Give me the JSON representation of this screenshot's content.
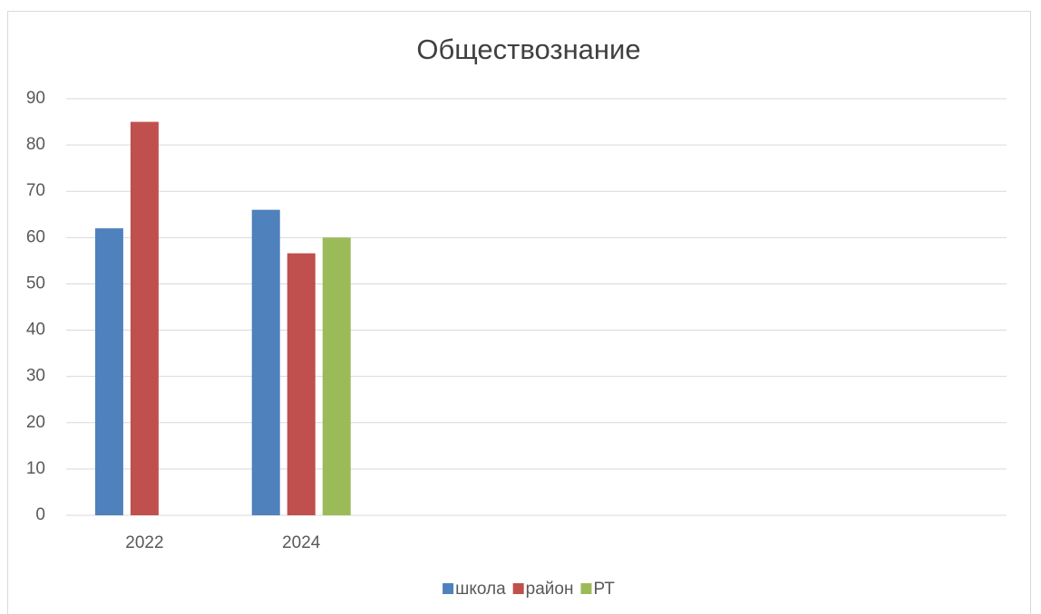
{
  "chart_data": {
    "type": "bar",
    "title": "Обществознание",
    "categories": [
      "2022",
      "2024",
      null,
      null,
      null,
      null
    ],
    "series": [
      {
        "name": "школа",
        "color": "#4f81bd",
        "values": [
          62,
          66,
          null,
          null,
          null,
          null
        ]
      },
      {
        "name": "район",
        "color": "#c0504d",
        "values": [
          85,
          56.6,
          null,
          null,
          null,
          null
        ]
      },
      {
        "name": "РТ",
        "color": "#9bbb59",
        "values": [
          null,
          60,
          null,
          null,
          null,
          null
        ]
      }
    ],
    "ylim": [
      0,
      90
    ],
    "yticks": [
      0,
      10,
      20,
      30,
      40,
      50,
      60,
      70,
      80,
      90
    ],
    "grid": true,
    "legend": "bottom"
  }
}
